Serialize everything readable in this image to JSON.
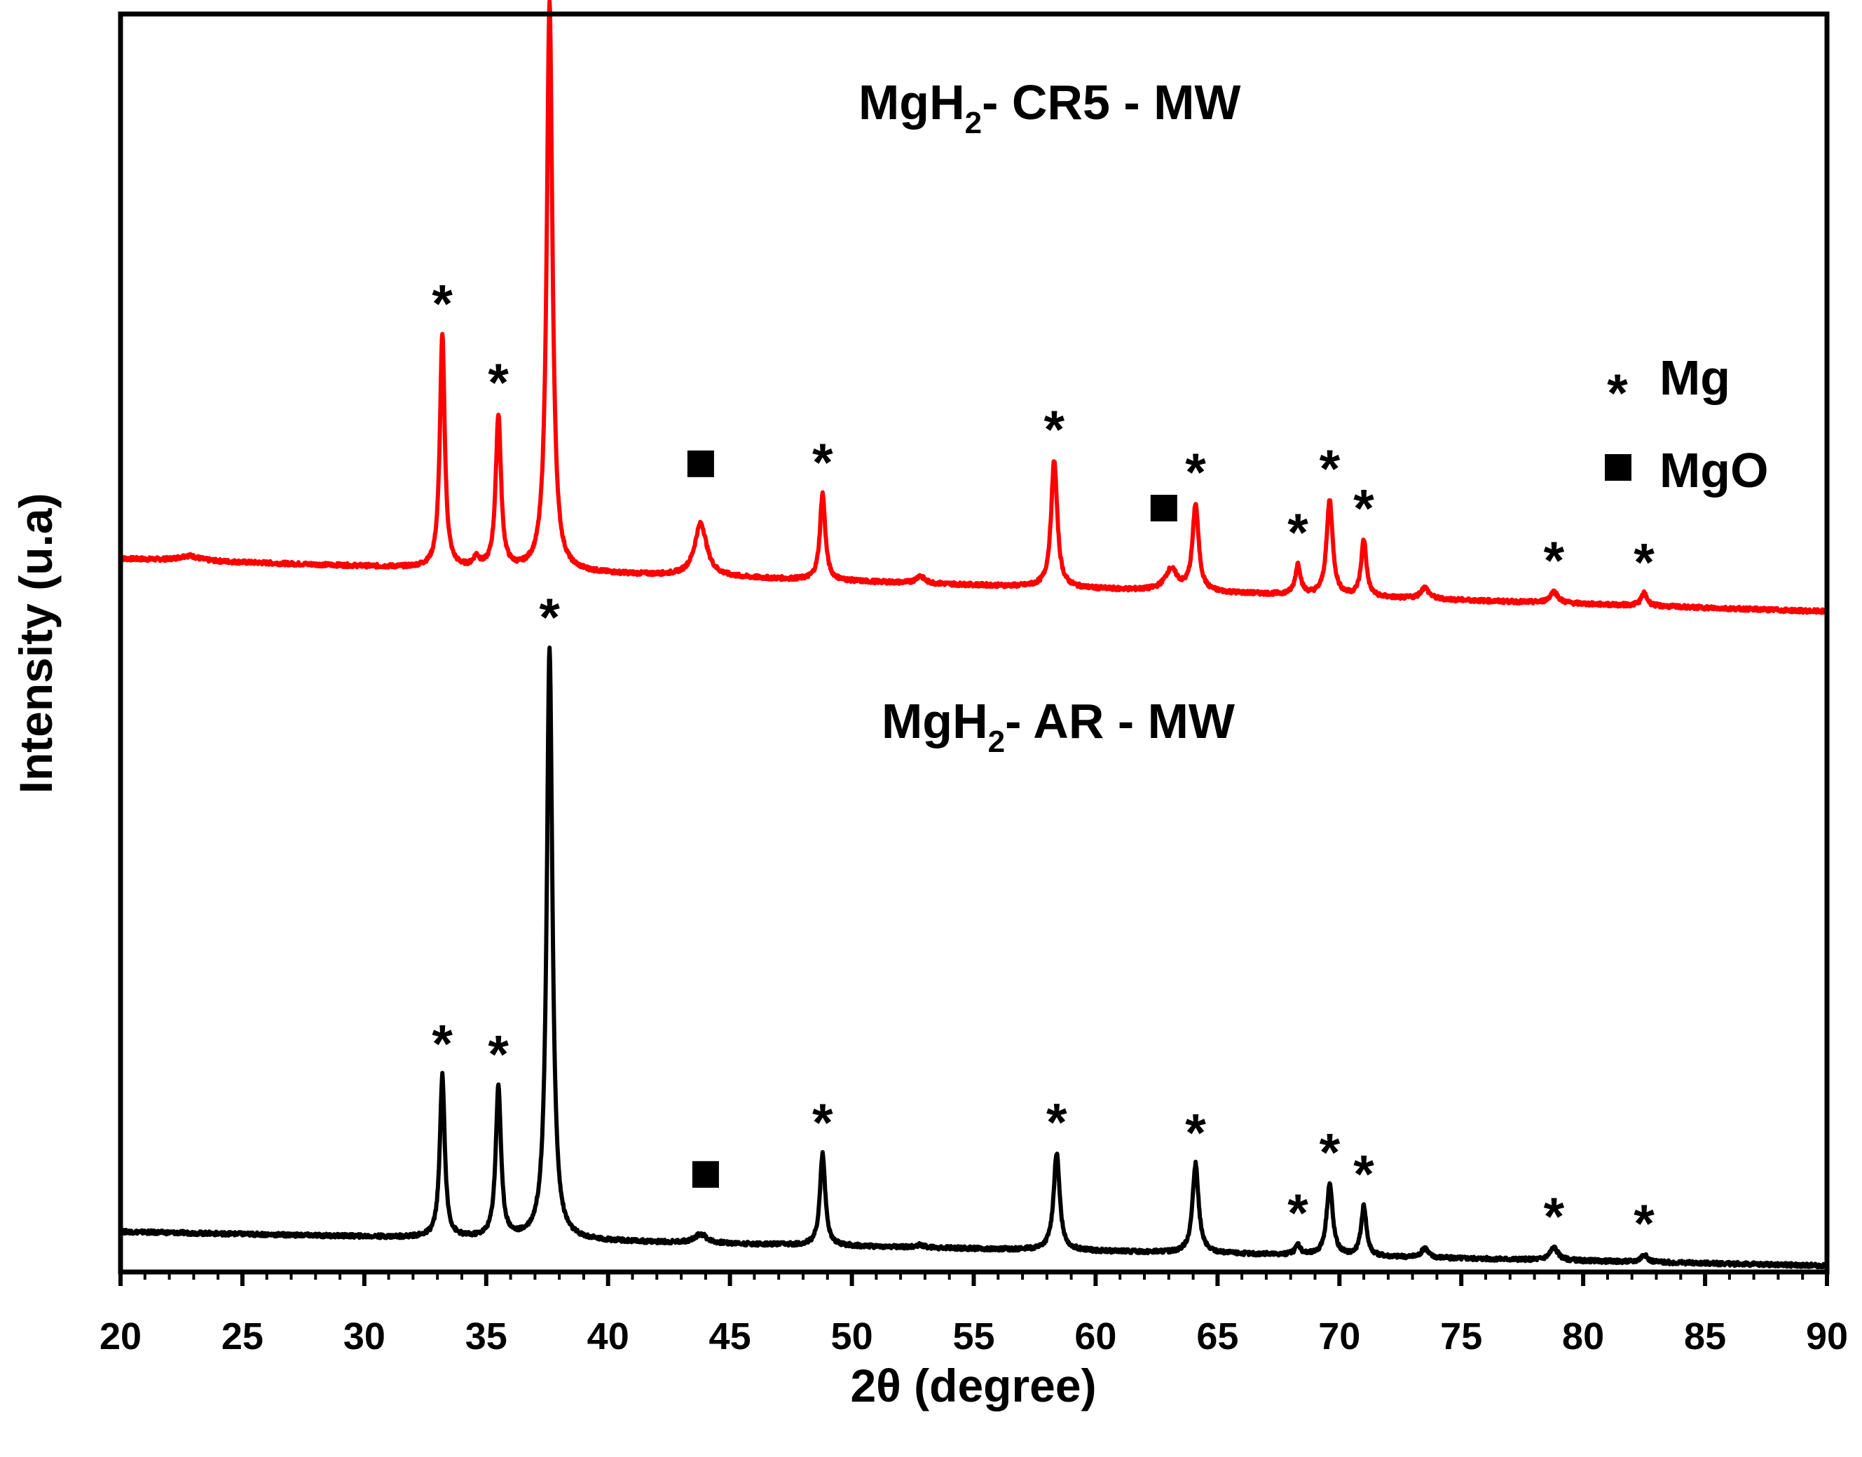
{
  "chart_data": {
    "type": "line",
    "title": "",
    "xlabel": "2θ (degree)",
    "ylabel": "Intensity (u.a)",
    "xlim": [
      20,
      90
    ],
    "ylim": [
      0,
      1
    ],
    "x_ticks": [
      20,
      25,
      30,
      35,
      40,
      45,
      50,
      55,
      60,
      65,
      70,
      75,
      80,
      85,
      90
    ],
    "x_tick_labels": [
      "20",
      "25",
      "30",
      "35",
      "40",
      "45",
      "50",
      "55",
      "60",
      "65",
      "70",
      "75",
      "80",
      "85",
      "90"
    ],
    "y_ticks": [],
    "grid": false,
    "legend": {
      "position": "right",
      "entries": [
        {
          "symbol": "*",
          "label": "Mg"
        },
        {
          "symbol": "■",
          "label": "MgO"
        }
      ]
    },
    "series": [
      {
        "name": "MgH2- CR5 - MW",
        "label_main": "MgH",
        "label_sub": "2",
        "label_rest": "- CR5 - MW",
        "color": "#ff0000",
        "baseline_start": 0.567,
        "baseline_end": 0.525,
        "peaks": [
          {
            "x": 22.8,
            "height": 0.004,
            "width": 0.5
          },
          {
            "x": 33.2,
            "height": 0.185,
            "width": 0.12
          },
          {
            "x": 34.6,
            "height": 0.008,
            "width": 0.15
          },
          {
            "x": 35.5,
            "height": 0.122,
            "width": 0.13
          },
          {
            "x": 37.6,
            "height": 0.452,
            "width": 0.14
          },
          {
            "x": 43.8,
            "height": 0.042,
            "width": 0.3
          },
          {
            "x": 48.8,
            "height": 0.069,
            "width": 0.13
          },
          {
            "x": 52.8,
            "height": 0.006,
            "width": 0.2
          },
          {
            "x": 58.3,
            "height": 0.101,
            "width": 0.15
          },
          {
            "x": 63.1,
            "height": 0.017,
            "width": 0.3
          },
          {
            "x": 64.1,
            "height": 0.069,
            "width": 0.15
          },
          {
            "x": 68.3,
            "height": 0.024,
            "width": 0.13
          },
          {
            "x": 69.6,
            "height": 0.076,
            "width": 0.15
          },
          {
            "x": 71.0,
            "height": 0.045,
            "width": 0.13
          },
          {
            "x": 73.5,
            "height": 0.009,
            "width": 0.2
          },
          {
            "x": 78.8,
            "height": 0.009,
            "width": 0.2
          },
          {
            "x": 82.5,
            "height": 0.01,
            "width": 0.15
          }
        ]
      },
      {
        "name": "MgH2- AR - MW",
        "label_main": "MgH",
        "label_sub": "2",
        "label_rest": "- AR - MW",
        "color": "#000000",
        "baseline_start": 0.032,
        "baseline_end": 0.005,
        "peaks": [
          {
            "x": 33.2,
            "height": 0.129,
            "width": 0.12
          },
          {
            "x": 35.5,
            "height": 0.12,
            "width": 0.13
          },
          {
            "x": 37.6,
            "height": 0.47,
            "width": 0.14
          },
          {
            "x": 43.8,
            "height": 0.007,
            "width": 0.3
          },
          {
            "x": 48.8,
            "height": 0.073,
            "width": 0.13
          },
          {
            "x": 52.8,
            "height": 0.002,
            "width": 0.2
          },
          {
            "x": 58.4,
            "height": 0.077,
            "width": 0.15
          },
          {
            "x": 64.1,
            "height": 0.071,
            "width": 0.15
          },
          {
            "x": 68.3,
            "height": 0.008,
            "width": 0.13
          },
          {
            "x": 69.6,
            "height": 0.057,
            "width": 0.15
          },
          {
            "x": 71.0,
            "height": 0.04,
            "width": 0.13
          },
          {
            "x": 73.5,
            "height": 0.008,
            "width": 0.15
          },
          {
            "x": 78.8,
            "height": 0.01,
            "width": 0.2
          },
          {
            "x": 82.5,
            "height": 0.006,
            "width": 0.15
          }
        ]
      }
    ],
    "annotations": [
      {
        "series": 0,
        "type": "Mg",
        "symbol": "*",
        "x": 33.2
      },
      {
        "series": 0,
        "type": "Mg",
        "symbol": "*",
        "x": 35.5
      },
      {
        "series": 0,
        "type": "Mg",
        "symbol": "*",
        "x": 37.6
      },
      {
        "series": 0,
        "type": "MgO",
        "symbol": "■",
        "x": 43.8
      },
      {
        "series": 0,
        "type": "Mg",
        "symbol": "*",
        "x": 48.8
      },
      {
        "series": 0,
        "type": "Mg",
        "symbol": "*",
        "x": 58.3
      },
      {
        "series": 0,
        "type": "MgO",
        "symbol": "■",
        "x": 62.8
      },
      {
        "series": 0,
        "type": "Mg",
        "symbol": "*",
        "x": 64.1
      },
      {
        "series": 0,
        "type": "Mg",
        "symbol": "*",
        "x": 68.3
      },
      {
        "series": 0,
        "type": "Mg",
        "symbol": "*",
        "x": 69.6
      },
      {
        "series": 0,
        "type": "Mg",
        "symbol": "*",
        "x": 71.0
      },
      {
        "series": 0,
        "type": "Mg",
        "symbol": "*",
        "x": 78.8
      },
      {
        "series": 0,
        "type": "Mg",
        "symbol": "*",
        "x": 82.5
      },
      {
        "series": 1,
        "type": "Mg",
        "symbol": "*",
        "x": 33.2
      },
      {
        "series": 1,
        "type": "Mg",
        "symbol": "*",
        "x": 35.5
      },
      {
        "series": 1,
        "type": "Mg",
        "symbol": "*",
        "x": 37.6
      },
      {
        "series": 1,
        "type": "MgO",
        "symbol": "■",
        "x": 44.0
      },
      {
        "series": 1,
        "type": "Mg",
        "symbol": "*",
        "x": 48.8
      },
      {
        "series": 1,
        "type": "Mg",
        "symbol": "*",
        "x": 58.4
      },
      {
        "series": 1,
        "type": "Mg",
        "symbol": "*",
        "x": 64.1
      },
      {
        "series": 1,
        "type": "Mg",
        "symbol": "*",
        "x": 68.3
      },
      {
        "series": 1,
        "type": "Mg",
        "symbol": "*",
        "x": 69.6
      },
      {
        "series": 1,
        "type": "Mg",
        "symbol": "*",
        "x": 71.0
      },
      {
        "series": 1,
        "type": "Mg",
        "symbol": "*",
        "x": 78.8
      },
      {
        "series": 1,
        "type": "Mg",
        "symbol": "*",
        "x": 82.5
      }
    ]
  }
}
